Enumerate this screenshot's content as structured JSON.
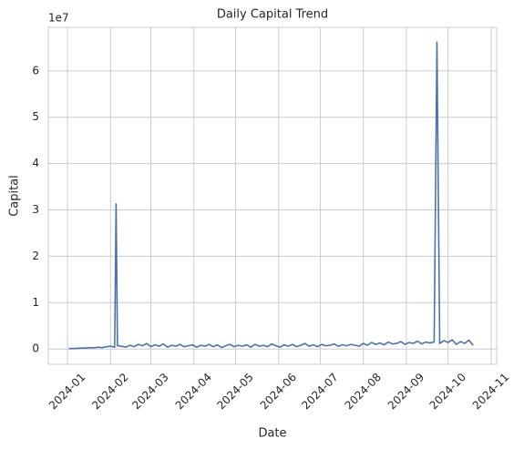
{
  "chart_data": {
    "type": "line",
    "title": "Daily Capital Trend",
    "x_label": "Date",
    "y_label": "Capital",
    "y_offset_label": "1e7",
    "grid": true,
    "xlim": [
      -13.8,
      309
    ],
    "ylim": [
      -0.33,
      6.94
    ],
    "xticks": [
      {
        "value": 0,
        "label": "2024-01"
      },
      {
        "value": 31,
        "label": "2024-02"
      },
      {
        "value": 60,
        "label": "2024-03"
      },
      {
        "value": 91,
        "label": "2024-04"
      },
      {
        "value": 121,
        "label": "2024-05"
      },
      {
        "value": 152,
        "label": "2024-06"
      },
      {
        "value": 182,
        "label": "2024-07"
      },
      {
        "value": 213,
        "label": "2024-08"
      },
      {
        "value": 244,
        "label": "2024-09"
      },
      {
        "value": 274,
        "label": "2024-10"
      },
      {
        "value": 305,
        "label": "2024-11"
      }
    ],
    "yticks": [
      0,
      1,
      2,
      3,
      4,
      5,
      6
    ],
    "color": "#4c72b0",
    "x": [
      1,
      4,
      7,
      10,
      13,
      16,
      19,
      22,
      25,
      28,
      31,
      34,
      35,
      36,
      39,
      42,
      45,
      48,
      51,
      54,
      57,
      60,
      63,
      66,
      69,
      72,
      75,
      78,
      81,
      84,
      87,
      90,
      93,
      96,
      99,
      102,
      105,
      108,
      111,
      114,
      117,
      120,
      123,
      126,
      129,
      132,
      135,
      138,
      141,
      144,
      147,
      150,
      153,
      156,
      159,
      162,
      165,
      168,
      171,
      174,
      177,
      180,
      183,
      186,
      189,
      192,
      195,
      198,
      201,
      204,
      207,
      210,
      213,
      216,
      219,
      222,
      225,
      228,
      231,
      234,
      237,
      240,
      243,
      246,
      249,
      252,
      255,
      258,
      261,
      264,
      266,
      268,
      271,
      274,
      277,
      280,
      283,
      286,
      289,
      292
    ],
    "values": [
      0.01,
      0.01,
      0.015,
      0.02,
      0.02,
      0.03,
      0.025,
      0.04,
      0.03,
      0.05,
      0.06,
      0.04,
      3.13,
      0.07,
      0.06,
      0.04,
      0.08,
      0.05,
      0.1,
      0.07,
      0.12,
      0.05,
      0.09,
      0.06,
      0.11,
      0.04,
      0.08,
      0.06,
      0.1,
      0.05,
      0.07,
      0.09,
      0.04,
      0.08,
      0.06,
      0.1,
      0.05,
      0.09,
      0.03,
      0.07,
      0.1,
      0.05,
      0.08,
      0.06,
      0.09,
      0.04,
      0.1,
      0.06,
      0.08,
      0.05,
      0.11,
      0.07,
      0.04,
      0.09,
      0.06,
      0.1,
      0.05,
      0.08,
      0.12,
      0.06,
      0.09,
      0.05,
      0.1,
      0.07,
      0.08,
      0.11,
      0.06,
      0.09,
      0.07,
      0.1,
      0.08,
      0.06,
      0.12,
      0.08,
      0.14,
      0.1,
      0.13,
      0.09,
      0.15,
      0.11,
      0.12,
      0.16,
      0.1,
      0.14,
      0.12,
      0.17,
      0.11,
      0.15,
      0.13,
      0.15,
      6.62,
      0.12,
      0.18,
      0.14,
      0.2,
      0.1,
      0.16,
      0.12,
      0.19,
      0.08
    ]
  }
}
